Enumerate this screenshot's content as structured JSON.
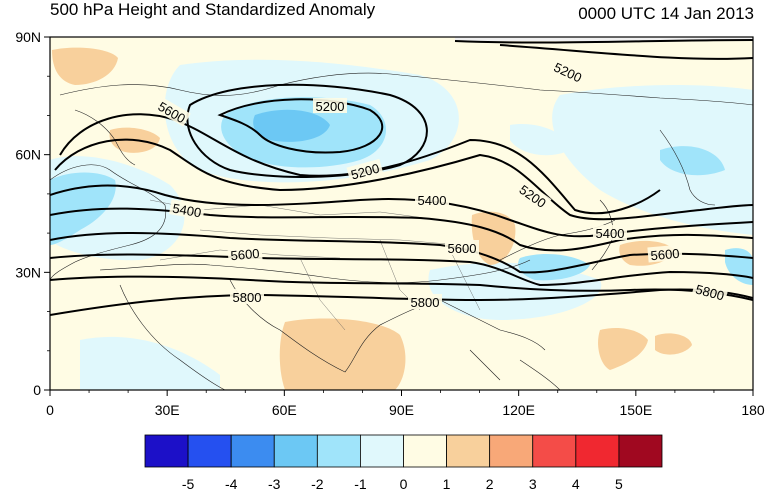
{
  "header": {
    "title": "500 hPa Height and Standardized Anomaly",
    "timestamp": "0000 UTC 14 Jan 2013"
  },
  "chart_data": {
    "type": "map",
    "projection": "cylindrical-equidistant",
    "lon_range": [
      0,
      180
    ],
    "lat_range": [
      0,
      90
    ],
    "x_ticks": [
      "0",
      "30E",
      "60E",
      "90E",
      "120E",
      "150E",
      "180"
    ],
    "y_ticks": [
      "0",
      "30N",
      "60N",
      "90N"
    ],
    "contour_labels": [
      "5200",
      "5600",
      "5200",
      "5200",
      "5400",
      "5400",
      "5200",
      "5600",
      "5600",
      "5400",
      "5600",
      "5800",
      "5800",
      "5800"
    ],
    "colorbar": {
      "labels": [
        "-5",
        "-4",
        "-3",
        "-2",
        "-1",
        "0",
        "1",
        "2",
        "3",
        "4",
        "5"
      ],
      "colors": [
        "#1c10c8",
        "#2550f0",
        "#3c8cf0",
        "#6cc8f4",
        "#a0e4fa",
        "#e0f8fc",
        "#fffce4",
        "#f8d09c",
        "#f8a878",
        "#f44c48",
        "#f02830",
        "#a00820"
      ]
    }
  }
}
